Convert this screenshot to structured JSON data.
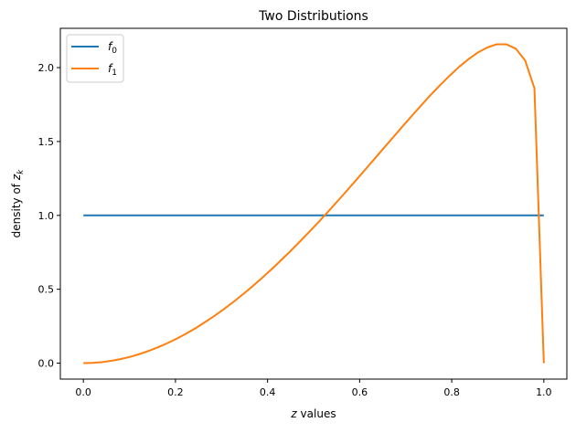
{
  "chart_data": {
    "type": "line",
    "title": "Two Distributions",
    "xlabel": "z values",
    "ylabel": "density of z_k",
    "xlim": [
      -0.05,
      1.05
    ],
    "ylim": [
      -0.108,
      2.266
    ],
    "xticks": [
      "0.0",
      "0.2",
      "0.4",
      "0.6",
      "0.8",
      "1.0"
    ],
    "yticks": [
      "0.0",
      "0.5",
      "1.0",
      "1.5",
      "2.0"
    ],
    "grid": false,
    "legend_position": "top-left",
    "x": [
      0,
      0.0204,
      0.0408,
      0.0612,
      0.0816,
      0.102,
      0.1224,
      0.1429,
      0.1633,
      0.1837,
      0.2041,
      0.2245,
      0.2449,
      0.2653,
      0.2857,
      0.3061,
      0.3265,
      0.3469,
      0.3673,
      0.3878,
      0.4082,
      0.4286,
      0.449,
      0.4694,
      0.4898,
      0.5102,
      0.5306,
      0.551,
      0.5714,
      0.5918,
      0.6122,
      0.6327,
      0.6531,
      0.6735,
      0.6939,
      0.7143,
      0.7347,
      0.7551,
      0.7755,
      0.7959,
      0.8163,
      0.8367,
      0.8571,
      0.8776,
      0.898,
      0.9184,
      0.9388,
      0.9592,
      0.9796,
      1
    ],
    "series": [
      {
        "name": "f_0",
        "color": "#1f77b4",
        "values": [
          1,
          1,
          1,
          1,
          1,
          1,
          1,
          1,
          1,
          1,
          1,
          1,
          1,
          1,
          1,
          1,
          1,
          1,
          1,
          1,
          1,
          1,
          1,
          1,
          1,
          1,
          1,
          1,
          1,
          1,
          1,
          1,
          1,
          1,
          1,
          1,
          1,
          1,
          1,
          1,
          1,
          1,
          1,
          1,
          1,
          1,
          1,
          1,
          1,
          1
        ]
      },
      {
        "name": "f_1",
        "color": "#ff7f0e",
        "values": [
          0,
          0.002,
          0.007,
          0.016,
          0.028,
          0.043,
          0.062,
          0.084,
          0.109,
          0.137,
          0.168,
          0.202,
          0.239,
          0.28,
          0.322,
          0.368,
          0.416,
          0.467,
          0.52,
          0.576,
          0.634,
          0.694,
          0.756,
          0.82,
          0.886,
          0.953,
          1.022,
          1.093,
          1.164,
          1.237,
          1.31,
          1.384,
          1.458,
          1.531,
          1.605,
          1.677,
          1.748,
          1.818,
          1.884,
          1.947,
          2.006,
          2.058,
          2.103,
          2.137,
          2.158,
          2.158,
          2.129,
          2.05,
          1.861,
          0
        ]
      }
    ]
  }
}
